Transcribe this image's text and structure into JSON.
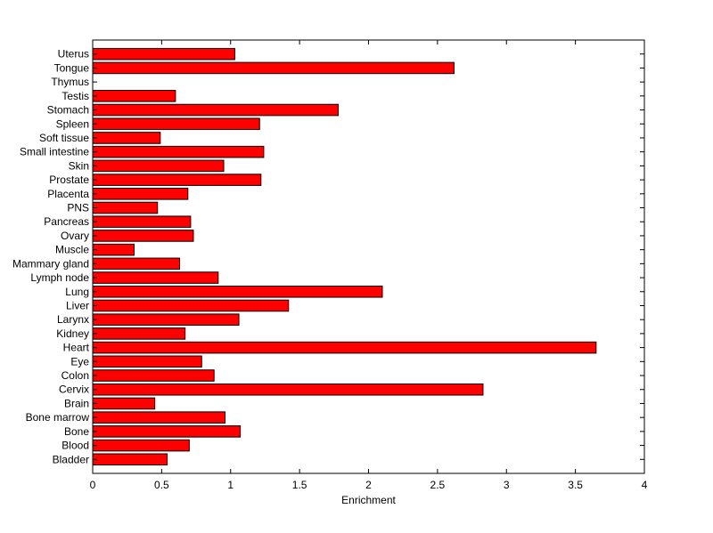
{
  "chart_data": {
    "type": "bar",
    "orientation": "horizontal",
    "title": "",
    "xlabel": "Enrichment",
    "ylabel": "",
    "xlim": [
      0,
      4
    ],
    "x_ticks": [
      0,
      0.5,
      1,
      1.5,
      2,
      2.5,
      3,
      3.5,
      4
    ],
    "x_tick_labels": [
      "0",
      "0.5",
      "1",
      "1.5",
      "2",
      "2.5",
      "3",
      "3.5",
      "4"
    ],
    "grid": false,
    "legend": "none",
    "categories_top_to_bottom": [
      "Uterus",
      "Tongue",
      "Thymus",
      "Testis",
      "Stomach",
      "Spleen",
      "Soft tissue",
      "Small intestine",
      "Skin",
      "Prostate",
      "Placenta",
      "PNS",
      "Pancreas",
      "Ovary",
      "Muscle",
      "Mammary gland",
      "Lymph node",
      "Lung",
      "Liver",
      "Larynx",
      "Kidney",
      "Heart",
      "Eye",
      "Colon",
      "Cervix",
      "Brain",
      "Bone marrow",
      "Bone",
      "Blood",
      "Bladder"
    ],
    "values": [
      1.03,
      2.62,
      0,
      0.6,
      1.78,
      1.21,
      0.49,
      1.24,
      0.95,
      1.22,
      0.69,
      0.47,
      0.71,
      0.73,
      0.3,
      0.63,
      0.91,
      2.1,
      1.42,
      1.06,
      0.67,
      3.65,
      0.79,
      0.88,
      2.83,
      0.45,
      0.96,
      1.07,
      0.7,
      0.54
    ],
    "bar_color": "#ff0000",
    "edge_color": "#000000"
  }
}
